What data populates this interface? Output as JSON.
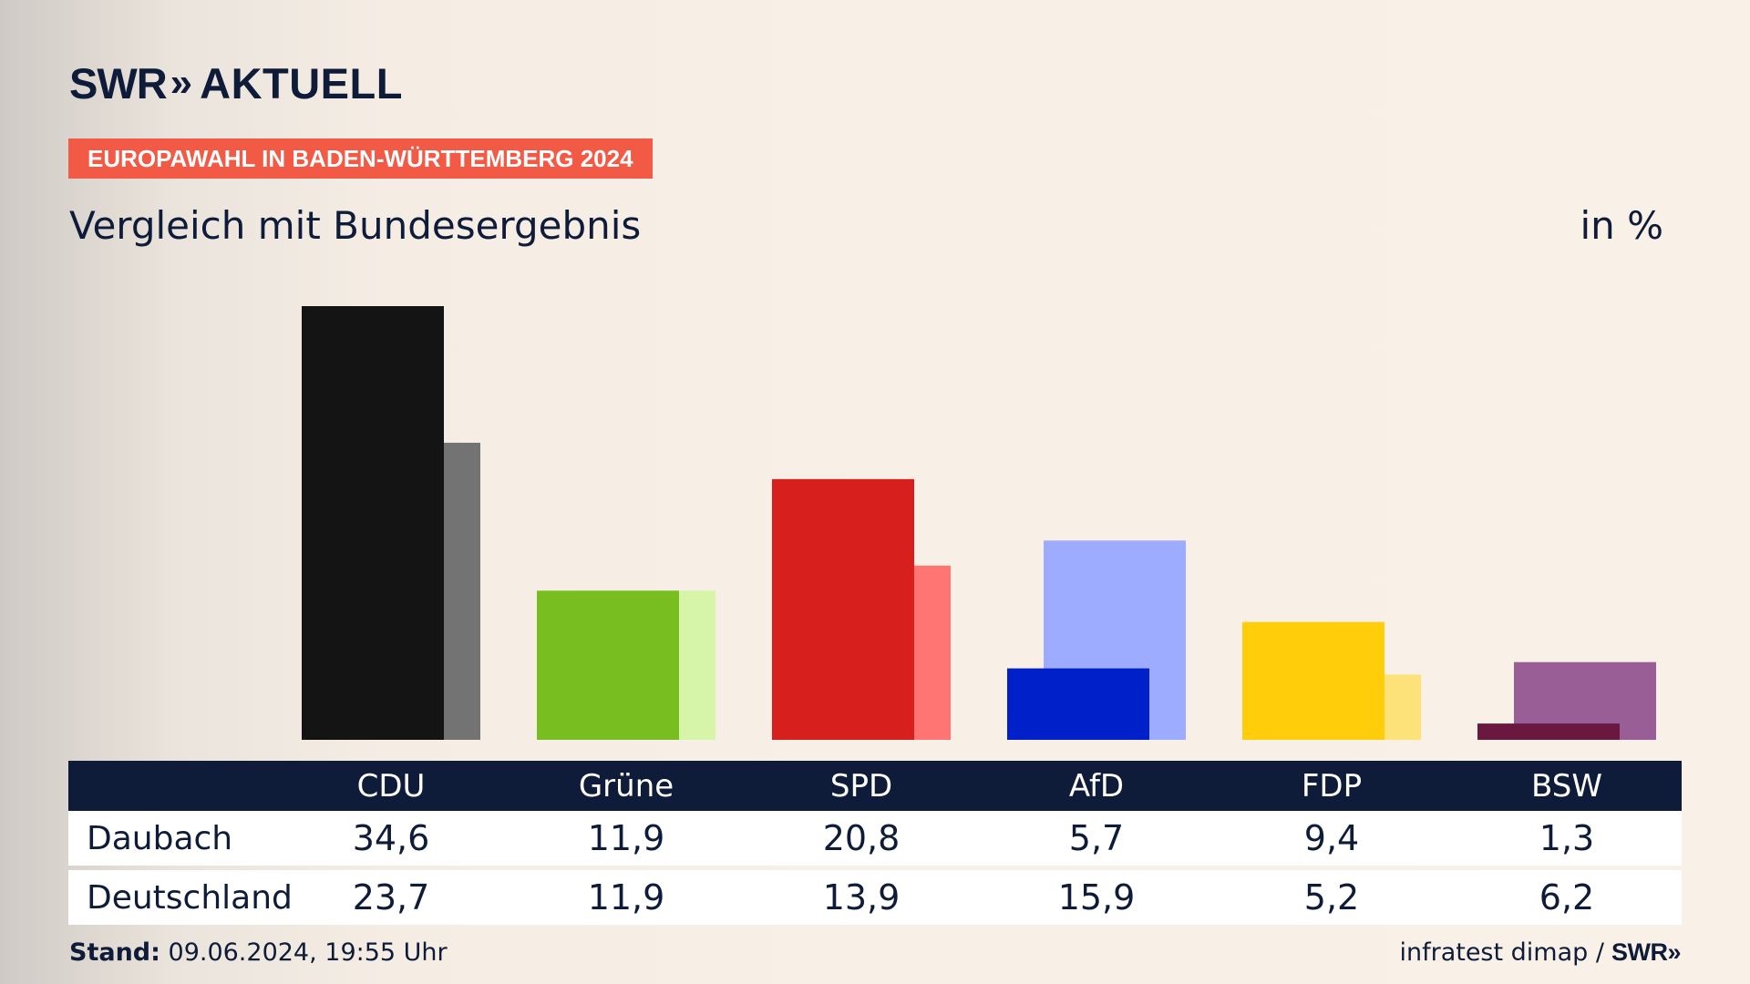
{
  "header": {
    "logo_brand": "SWR",
    "logo_chevrons": "»",
    "logo_program": "AKTUELL",
    "tag": "EUROPAWAHL IN BADEN-WÜRTTEMBERG 2024",
    "subtitle": "Vergleich mit Bundesergebnis",
    "unit": "in %"
  },
  "chart_data": {
    "type": "bar",
    "title": "Vergleich mit Bundesergebnis",
    "ylabel": "in %",
    "ylim": [
      0,
      36
    ],
    "grid": false,
    "categories": [
      "CDU",
      "Grüne",
      "SPD",
      "AfD",
      "FDP",
      "BSW"
    ],
    "series": [
      {
        "name": "Daubach",
        "values": [
          34.6,
          11.9,
          20.8,
          5.7,
          9.4,
          1.3
        ],
        "colors": [
          "#141414",
          "#78be20",
          "#d7201e",
          "#0021c9",
          "#ffcd0a",
          "#6a1840"
        ]
      },
      {
        "name": "Deutschland",
        "values": [
          23.7,
          11.9,
          13.9,
          15.9,
          5.2,
          6.2
        ],
        "colors": [
          "#737373",
          "#d6f5a8",
          "#ff7573",
          "#9dacff",
          "#fde27a",
          "#9a5e97"
        ]
      }
    ]
  },
  "table": {
    "rows": [
      {
        "label": "Daubach",
        "values": [
          "34,6",
          "11,9",
          "20,8",
          "5,7",
          "9,4",
          "1,3"
        ]
      },
      {
        "label": "Deutschland",
        "values": [
          "23,7",
          "11,9",
          "13,9",
          "15,9",
          "5,2",
          "6,2"
        ]
      }
    ]
  },
  "footer": {
    "stand_label": "Stand:",
    "stand_value": "09.06.2024, 19:55 Uhr",
    "source": "infratest dimap /",
    "source_logo": "SWR»"
  }
}
